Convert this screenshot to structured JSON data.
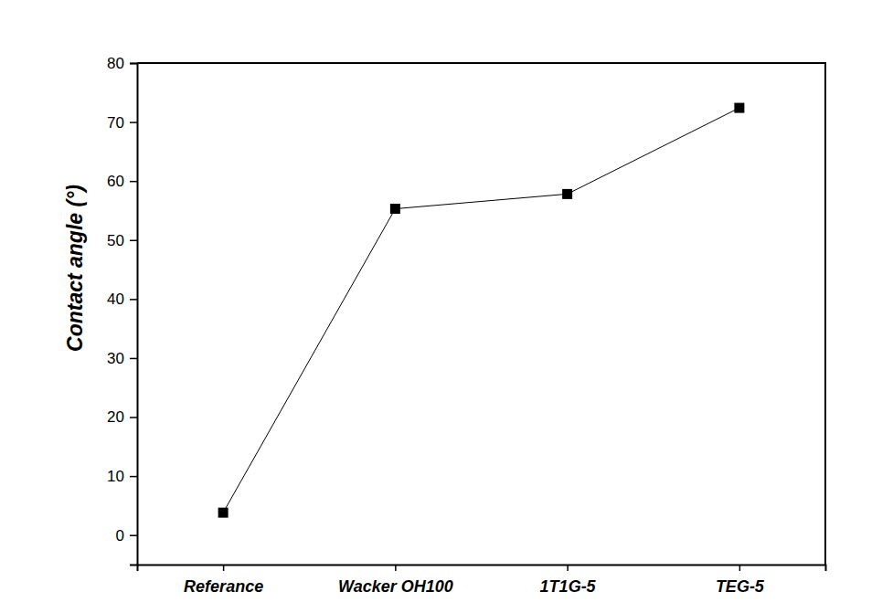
{
  "chart_data": {
    "type": "line",
    "y_label": "Contact angle (°)",
    "categories": [
      "Referance",
      "Wacker OH100",
      "1T1G-5",
      "TEG-5"
    ],
    "values": [
      3.8,
      55.3,
      57.8,
      72.4
    ],
    "color": "#000000",
    "marker": "square",
    "line_style": "solid",
    "ylim": [
      -5,
      80
    ],
    "yticks": [
      0,
      10,
      20,
      30,
      40,
      50,
      60,
      70,
      80
    ],
    "grid": false
  }
}
